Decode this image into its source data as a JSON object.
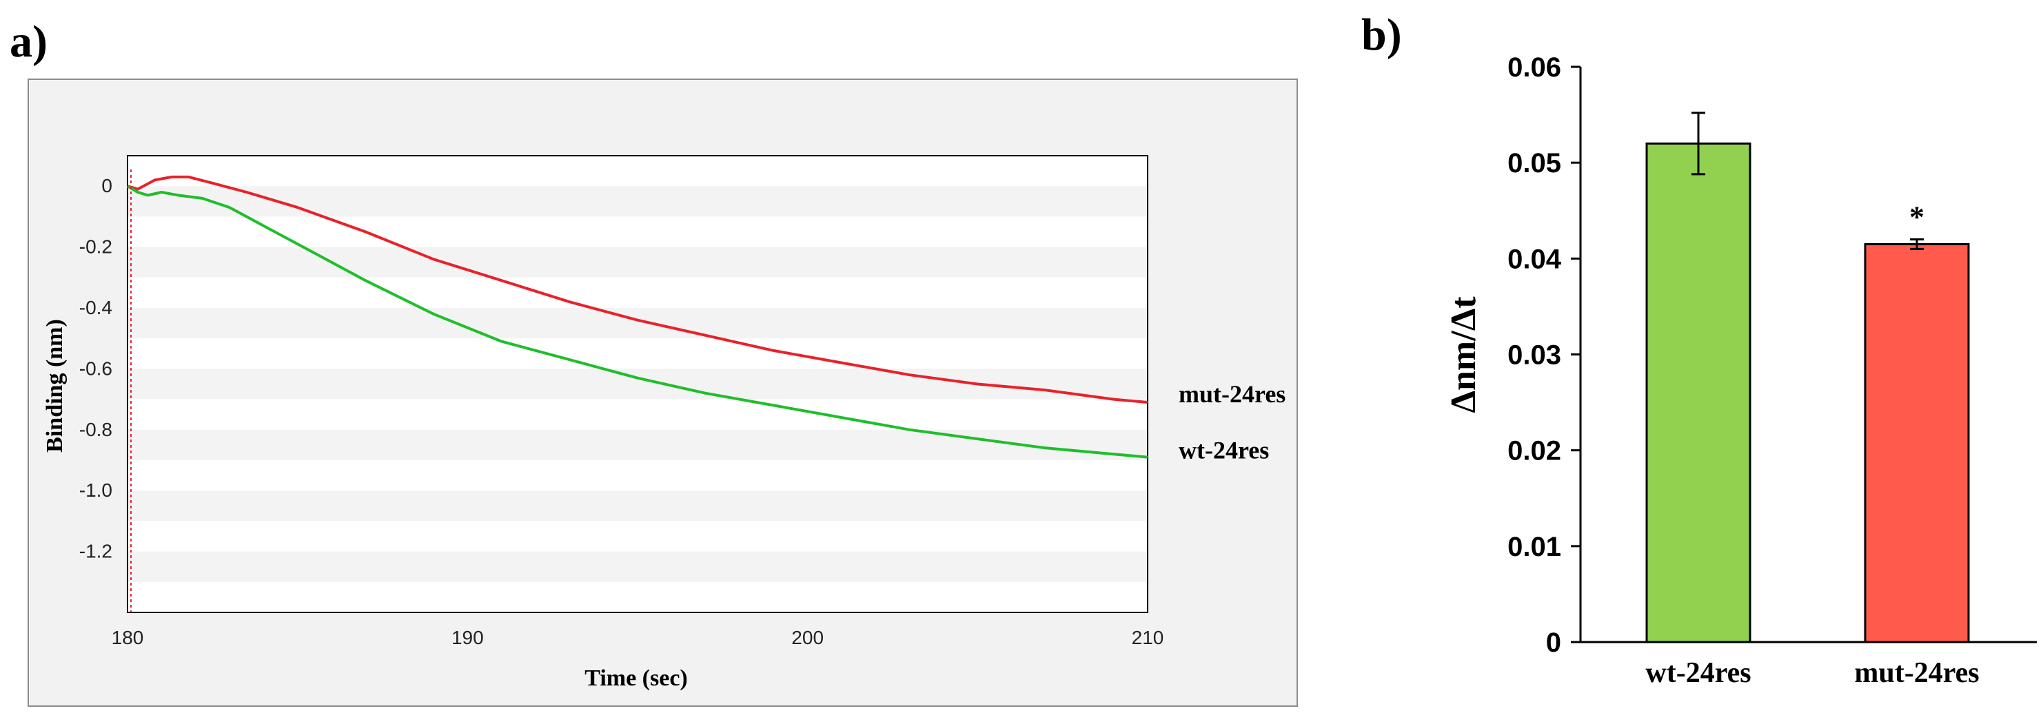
{
  "figure": {
    "panel_a_label": "a)",
    "panel_b_label": "b)"
  },
  "chart_data": [
    {
      "type": "line",
      "xlabel": "Time (sec)",
      "ylabel": "Binding (nm)",
      "xlim": [
        180,
        210
      ],
      "ylim": [
        -1.4,
        0.1
      ],
      "x_ticks": [
        "180",
        "190",
        "200",
        "210"
      ],
      "y_ticks": [
        "0",
        "-0.2",
        "-0.4",
        "-0.6",
        "-0.8",
        "-1.0",
        "-1.2"
      ],
      "grid": true,
      "series": [
        {
          "name": "mut-24res",
          "color": "#e8222a",
          "x": [
            180,
            180.3,
            180.8,
            181.3,
            181.8,
            182.5,
            183.5,
            185,
            187,
            189,
            191,
            193,
            195,
            197,
            199,
            201,
            203,
            205,
            207,
            209,
            210
          ],
          "y": [
            0,
            -0.01,
            0.02,
            0.03,
            0.03,
            0.01,
            -0.02,
            -0.07,
            -0.15,
            -0.24,
            -0.31,
            -0.38,
            -0.44,
            -0.49,
            -0.54,
            -0.58,
            -0.62,
            -0.65,
            -0.67,
            -0.7,
            -0.71
          ]
        },
        {
          "name": "wt-24res",
          "color": "#1fbe2a",
          "x": [
            180,
            180.3,
            180.6,
            181,
            181.5,
            182.2,
            183,
            184,
            185.5,
            187,
            189,
            191,
            193,
            195,
            197,
            199,
            201,
            203,
            205,
            207,
            209,
            210
          ],
          "y": [
            0,
            -0.02,
            -0.03,
            -0.02,
            -0.03,
            -0.04,
            -0.07,
            -0.13,
            -0.22,
            -0.31,
            -0.42,
            -0.51,
            -0.57,
            -0.63,
            -0.68,
            -0.72,
            -0.76,
            -0.8,
            -0.83,
            -0.86,
            -0.88,
            -0.89
          ]
        }
      ]
    },
    {
      "type": "bar",
      "ylabel": "Δnm/Δt",
      "xlabel": "",
      "ylim": [
        0,
        0.06
      ],
      "y_ticks": [
        "0",
        "0.01",
        "0.02",
        "0.03",
        "0.04",
        "0.05",
        "0.06"
      ],
      "categories": [
        "wt-24res",
        "mut-24res"
      ],
      "values": [
        0.052,
        0.0415
      ],
      "errors": [
        0.0032,
        0.0005
      ],
      "colors": [
        "#92d050",
        "#ff5a4c"
      ],
      "annotations": [
        "",
        "*"
      ],
      "grid": false
    }
  ]
}
